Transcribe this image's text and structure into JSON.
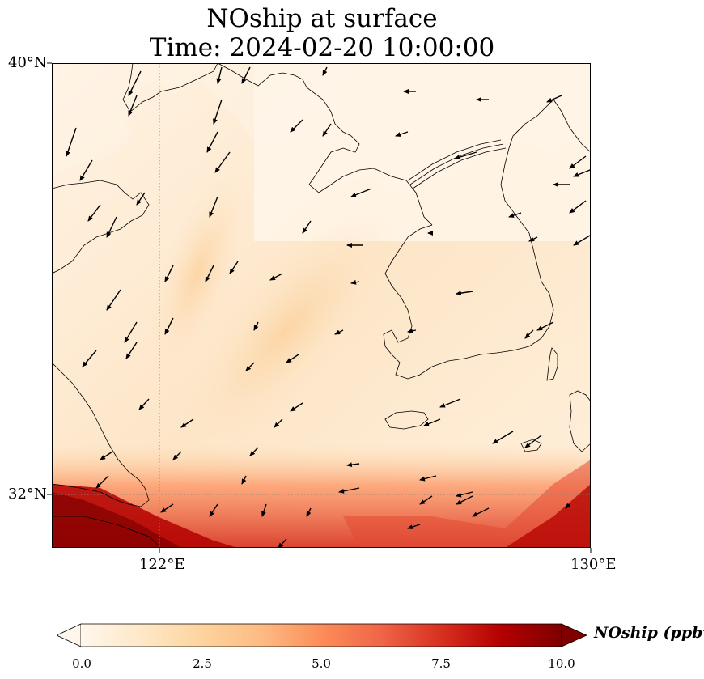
{
  "figure": {
    "title_line1": "NOship at surface",
    "title_line2": "Time: 2024-02-20 10:00:00"
  },
  "map": {
    "lat_labels": [
      "40°N",
      "32°N"
    ],
    "lon_labels": [
      "122°E",
      "130°E"
    ],
    "extent": {
      "lon_min": 120,
      "lon_max": 130,
      "lat_min": 31,
      "lat_max": 40
    },
    "gridlines": {
      "lon": [
        122
      ],
      "lat": [
        32
      ],
      "style": "dotted"
    },
    "wind_vectors": "shown",
    "coastlines": "shown"
  },
  "colorbar": {
    "label": "NOship (ppbv)",
    "ticks": [
      "0.0",
      "2.5",
      "5.0",
      "7.5",
      "10.0"
    ],
    "range": [
      0,
      10
    ],
    "extend": "both",
    "colormap": "OrRd",
    "colors": [
      "#fff7ec",
      "#fee8c8",
      "#fdd49e",
      "#fdbb84",
      "#fc8d59",
      "#ef6548",
      "#d7301f",
      "#b30000",
      "#7f0000"
    ]
  }
}
